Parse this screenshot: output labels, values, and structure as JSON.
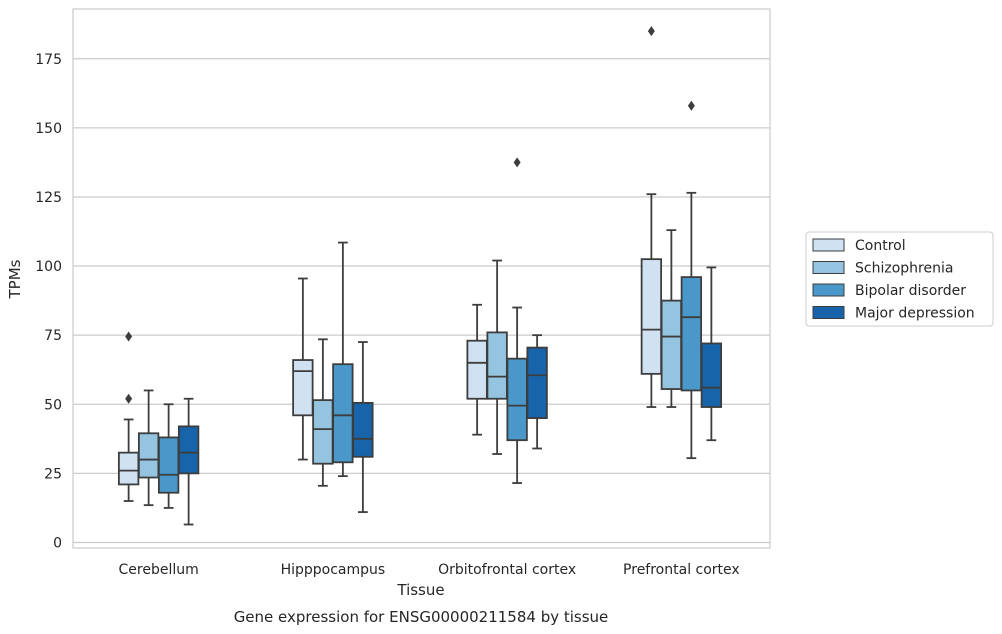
{
  "chart_data": {
    "type": "box",
    "title": "",
    "caption": "Gene expression for ENSG00000211584 by tissue",
    "xlabel": "Tissue",
    "ylabel": "TPMs",
    "ylim": [
      -2,
      193
    ],
    "yticks": [
      0,
      25,
      50,
      75,
      100,
      125,
      150,
      175
    ],
    "grid": "horizontal",
    "legend_position": "right",
    "categories": [
      "Cerebellum",
      "Hipppocampus",
      "Orbitofrontal cortex",
      "Prefrontal cortex"
    ],
    "series": [
      {
        "name": "Control",
        "color": "#d0e1f2",
        "boxes": [
          {
            "whisker_low": 15,
            "q1": 21,
            "median": 26,
            "q3": 32.5,
            "whisker_high": 44.5,
            "outliers": [
              52,
              74.5
            ]
          },
          {
            "whisker_low": 30,
            "q1": 46,
            "median": 62,
            "q3": 66,
            "whisker_high": 95.5,
            "outliers": []
          },
          {
            "whisker_low": 39,
            "q1": 52,
            "median": 65,
            "q3": 73,
            "whisker_high": 86,
            "outliers": []
          },
          {
            "whisker_low": 49,
            "q1": 61,
            "median": 77,
            "q3": 102.5,
            "whisker_high": 126,
            "outliers": [
              185
            ]
          }
        ]
      },
      {
        "name": "Schizophrenia",
        "color": "#94c4df",
        "boxes": [
          {
            "whisker_low": 13.5,
            "q1": 23.5,
            "median": 30,
            "q3": 39.5,
            "whisker_high": 55,
            "outliers": []
          },
          {
            "whisker_low": 20.5,
            "q1": 28.5,
            "median": 41,
            "q3": 51.5,
            "whisker_high": 73.5,
            "outliers": []
          },
          {
            "whisker_low": 32,
            "q1": 52,
            "median": 60,
            "q3": 76,
            "whisker_high": 102,
            "outliers": []
          },
          {
            "whisker_low": 49,
            "q1": 55.5,
            "median": 74.5,
            "q3": 87.5,
            "whisker_high": 113,
            "outliers": []
          }
        ]
      },
      {
        "name": "Bipolar disorder",
        "color": "#4a98c9",
        "boxes": [
          {
            "whisker_low": 12.5,
            "q1": 18,
            "median": 24.5,
            "q3": 38,
            "whisker_high": 50,
            "outliers": []
          },
          {
            "whisker_low": 24,
            "q1": 29,
            "median": 46,
            "q3": 64.5,
            "whisker_high": 108.5,
            "outliers": []
          },
          {
            "whisker_low": 21.5,
            "q1": 37,
            "median": 49.5,
            "q3": 66.5,
            "whisker_high": 85,
            "outliers": [
              137.5
            ]
          },
          {
            "whisker_low": 30.5,
            "q1": 55,
            "median": 81.5,
            "q3": 96,
            "whisker_high": 126.5,
            "outliers": [
              158
            ]
          }
        ]
      },
      {
        "name": "Major depression",
        "color": "#1764ab",
        "boxes": [
          {
            "whisker_low": 6.5,
            "q1": 25,
            "median": 32.5,
            "q3": 42,
            "whisker_high": 52,
            "outliers": []
          },
          {
            "whisker_low": 11,
            "q1": 31,
            "median": 37.5,
            "q3": 50.5,
            "whisker_high": 72.5,
            "outliers": []
          },
          {
            "whisker_low": 34,
            "q1": 45,
            "median": 60.5,
            "q3": 70.5,
            "whisker_high": 75,
            "outliers": []
          },
          {
            "whisker_low": 37,
            "q1": 49,
            "median": 56,
            "q3": 72,
            "whisker_high": 99.5,
            "outliers": []
          }
        ]
      }
    ]
  }
}
